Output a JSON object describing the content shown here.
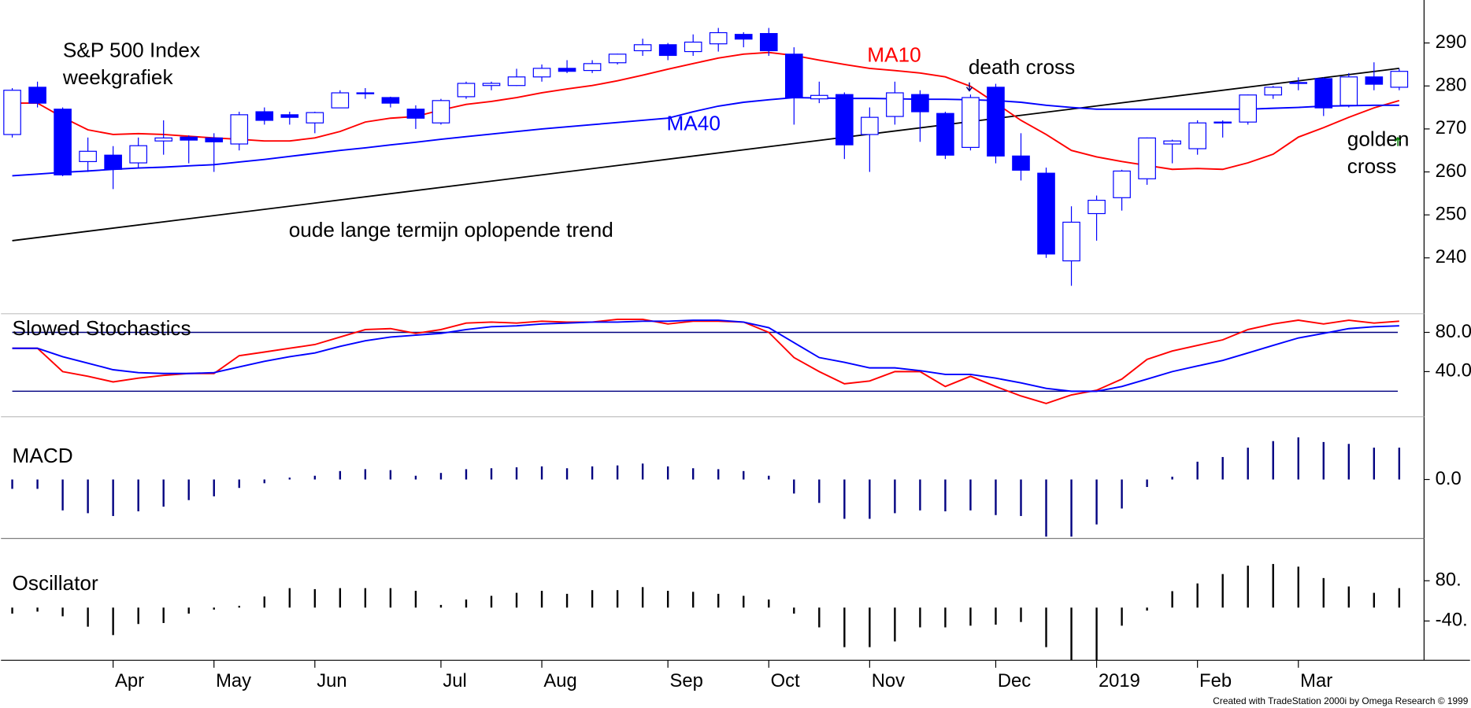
{
  "chart_data": [
    {
      "type": "candlestick",
      "title": "S&P 500 Index",
      "subtitle": "weekgrafiek",
      "categories": [
        null,
        null,
        null,
        null,
        "Apr",
        null,
        null,
        null,
        "May",
        null,
        null,
        null,
        "Jun",
        null,
        null,
        null,
        null,
        "Jul",
        null,
        null,
        null,
        "Aug",
        null,
        null,
        null,
        null,
        "Sep",
        null,
        null,
        null,
        "Oct",
        null,
        null,
        null,
        "Nov",
        null,
        null,
        null,
        null,
        "Dec",
        null,
        null,
        null,
        "2019",
        null,
        null,
        null,
        "Feb",
        null,
        null,
        null,
        "Mar",
        null,
        null,
        null,
        null
      ],
      "open": [
        268.7,
        279.7,
        274.6,
        262.4,
        263.9,
        262.1,
        267.2,
        268.1,
        267.9,
        266.5,
        274.0,
        273.3,
        271.4,
        274.9,
        278.2,
        277.3,
        274.6,
        271.4,
        277.5,
        280.1,
        280.1,
        282.1,
        284.1,
        283.6,
        285.4,
        288.2,
        289.6,
        288.0,
        289.8,
        292.0,
        292.2,
        287.4,
        277.0,
        278.0,
        268.7,
        272.9,
        278.0,
        273.6,
        265.7,
        279.7,
        263.7,
        259.7,
        239.3,
        250.3,
        254.0,
        258.4,
        266.5,
        265.4,
        271.4,
        271.6,
        277.9,
        280.6,
        281.7,
        275.5,
        282.1,
        279.7
      ],
      "high": [
        279.5,
        281,
        275,
        268,
        266,
        268,
        272,
        268.5,
        269,
        274,
        275,
        274,
        274,
        279,
        279.5,
        277.5,
        275.5,
        277,
        281,
        281,
        284,
        285,
        286,
        286,
        287.5,
        291,
        290,
        292,
        293.5,
        292.5,
        293.5,
        289,
        281,
        278.5,
        275,
        281,
        279,
        274,
        278,
        280.5,
        269,
        261,
        252,
        254.5,
        260.5,
        268,
        267.5,
        272,
        272,
        278,
        280,
        282,
        282,
        283,
        285.5,
        284
      ],
      "low": [
        268,
        275,
        259,
        260,
        256,
        261,
        264,
        262,
        260,
        265,
        271,
        271,
        269,
        275,
        277,
        275,
        270,
        271,
        277,
        279,
        280,
        281,
        283,
        283,
        285,
        287,
        286,
        287,
        288,
        289,
        287,
        271,
        276,
        263,
        260,
        271,
        267,
        263,
        265,
        262,
        258,
        240,
        233.5,
        244,
        251,
        257,
        262,
        264,
        268,
        271,
        277,
        279,
        273,
        275,
        279,
        279
      ],
      "close": [
        279.0,
        276.0,
        259.3,
        264.8,
        260.6,
        266.1,
        267.9,
        267.4,
        267.0,
        273.3,
        272.0,
        272.7,
        273.8,
        278.4,
        278.4,
        276.0,
        272.5,
        276.6,
        280.6,
        280.6,
        282.1,
        284.1,
        283.4,
        285.2,
        287.4,
        289.6,
        287.1,
        290.2,
        292.4,
        290.9,
        288.2,
        277.3,
        277.8,
        266.3,
        272.7,
        278.4,
        274.0,
        263.9,
        277.3,
        263.7,
        260.4,
        240.9,
        248.3,
        253.4,
        260.2,
        267.9,
        267.2,
        271.4,
        271.6,
        277.9,
        279.7,
        280.8,
        274.9,
        282.1,
        280.4,
        283.4
      ],
      "color": "#0000ff",
      "series": [
        {
          "name": "MA10",
          "color": "#ff0000",
          "values": [
            276,
            276,
            272.7,
            269.8,
            268.7,
            268.9,
            268.7,
            268.3,
            267.9,
            267.6,
            267.2,
            267.2,
            267.9,
            269.4,
            271.6,
            272.5,
            272.9,
            274.4,
            275.7,
            276.4,
            277.3,
            278.4,
            279.3,
            280.1,
            281.2,
            282.5,
            283.9,
            285.2,
            286.5,
            287.4,
            287.8,
            287.1,
            286,
            285,
            284.1,
            283.6,
            283,
            282.1,
            279.9,
            276,
            272,
            268.7,
            265,
            263.5,
            262.4,
            261.5,
            260.6,
            260.8,
            260.6,
            262.1,
            264.1,
            268.1,
            270.3,
            272.7,
            274.9,
            276.6
          ]
        },
        {
          "name": "MA40",
          "color": "#0000ff",
          "values": [
            259.1,
            259.5,
            259.9,
            260.2,
            260.6,
            260.9,
            261.1,
            261.4,
            261.7,
            262.3,
            262.9,
            263.6,
            264.3,
            265,
            265.6,
            266.3,
            266.9,
            267.6,
            268.2,
            268.8,
            269.4,
            270,
            270.5,
            271,
            271.5,
            272,
            272.5,
            274,
            275.3,
            276.2,
            276.8,
            277.3,
            277.2,
            277.1,
            277.1,
            277,
            276.9,
            276.9,
            276.8,
            276.6,
            276.2,
            275.5,
            275,
            274.6,
            274.6,
            274.6,
            274.6,
            274.6,
            274.6,
            274.6,
            274.8,
            275,
            275.3,
            275.4,
            275.5,
            275.5
          ]
        }
      ],
      "trend": {
        "label": "oude lange termijn oplopende trend",
        "color": "#000000",
        "values": [
          244.0,
          284.1
        ]
      },
      "death_cross": "death cross",
      "golden_cross": [
        "golden",
        "cross"
      ],
      "ylim": [
        227,
        300
      ],
      "yticks": [
        240,
        250,
        260,
        270,
        280,
        290
      ],
      "credit": "Created with TradeStation 2000i by Omega Research © 1999"
    },
    {
      "type": "line",
      "title": "Slowed Stochastics",
      "series": [
        {
          "color": "#ff0000",
          "values": [
            63.8,
            63.8,
            40,
            35.2,
            29.5,
            33.3,
            36.2,
            38.1,
            38.1,
            56.2,
            60,
            63.8,
            67.6,
            75.2,
            82.9,
            83.8,
            79,
            82.9,
            89.5,
            90.5,
            89.5,
            91.4,
            90.5,
            90.5,
            93.3,
            93.3,
            88.6,
            91.4,
            91.4,
            90.5,
            80,
            54.3,
            40,
            27.6,
            30.5,
            40,
            40,
            24.8,
            35.2,
            24.8,
            15.2,
            7.6,
            16.2,
            21,
            32.4,
            52.4,
            61,
            66.7,
            72.4,
            82.9,
            88.6,
            92.4,
            88.6,
            92.4,
            89.5,
            91.4
          ]
        },
        {
          "color": "#0000ff",
          "values": [
            63.8,
            63.8,
            55.2,
            48.6,
            41.9,
            39,
            38.1,
            38.1,
            39,
            44.8,
            50.5,
            55.2,
            59,
            65.7,
            71.4,
            75.2,
            77.1,
            79,
            82.9,
            85.7,
            86.7,
            88.6,
            89.5,
            90.5,
            90.5,
            91.4,
            91.4,
            92.4,
            92.4,
            90.5,
            84.8,
            69.5,
            54.3,
            49.5,
            43.8,
            43.8,
            41,
            37.1,
            37.1,
            33.3,
            28.6,
            22.9,
            20,
            20,
            24.8,
            32.4,
            40,
            45.7,
            51.4,
            59,
            66.7,
            74.3,
            79,
            83.8,
            85.7,
            86.7
          ]
        }
      ],
      "hlines": [
        80,
        20
      ],
      "hline_color": "#000080",
      "ylim": [
        -6,
        99
      ],
      "yticks": [
        {
          "value": 40,
          "label": "40.0"
        },
        {
          "value": 80,
          "label": "80.0"
        }
      ]
    },
    {
      "type": "bar",
      "title": "MACD",
      "color": "#000080",
      "values": [
        -10,
        -10,
        -33,
        -36,
        -39,
        -34,
        -29,
        -22,
        -18,
        -9,
        -4,
        2,
        4,
        9,
        11,
        10,
        4,
        7,
        11,
        12,
        13,
        14,
        12,
        14,
        15,
        17,
        14,
        12,
        11,
        9,
        4,
        -15,
        -25,
        -42,
        -42,
        -36,
        -33,
        -34,
        -33,
        -38,
        -39,
        -61,
        -61,
        -48,
        -31,
        -8,
        3,
        19,
        24,
        34,
        41,
        45,
        40,
        38,
        34,
        34
      ],
      "ylim": [
        -63,
        67
      ],
      "yticks": [
        {
          "value": 0,
          "label": "0.0"
        }
      ]
    },
    {
      "type": "bar",
      "title": "Oscillator",
      "color": "#000000",
      "values": [
        -18,
        -12,
        -26,
        -57,
        -82,
        -49,
        -46,
        -18,
        -6,
        5,
        33,
        58,
        55,
        58,
        58,
        58,
        50,
        8,
        24,
        35,
        44,
        50,
        41,
        52,
        52,
        61,
        50,
        47,
        41,
        35,
        24,
        -18,
        -59,
        -118,
        -118,
        -101,
        -59,
        -59,
        -54,
        -51,
        -43,
        -118,
        -157,
        -157,
        -54,
        -9,
        49,
        72,
        100,
        125,
        130,
        122,
        88,
        63,
        44,
        58
      ],
      "ylim": [
        -157,
        206
      ],
      "yticks": [
        {
          "value": 80,
          "label": "80."
        },
        {
          "value": -40,
          "label": "-40."
        }
      ]
    }
  ]
}
